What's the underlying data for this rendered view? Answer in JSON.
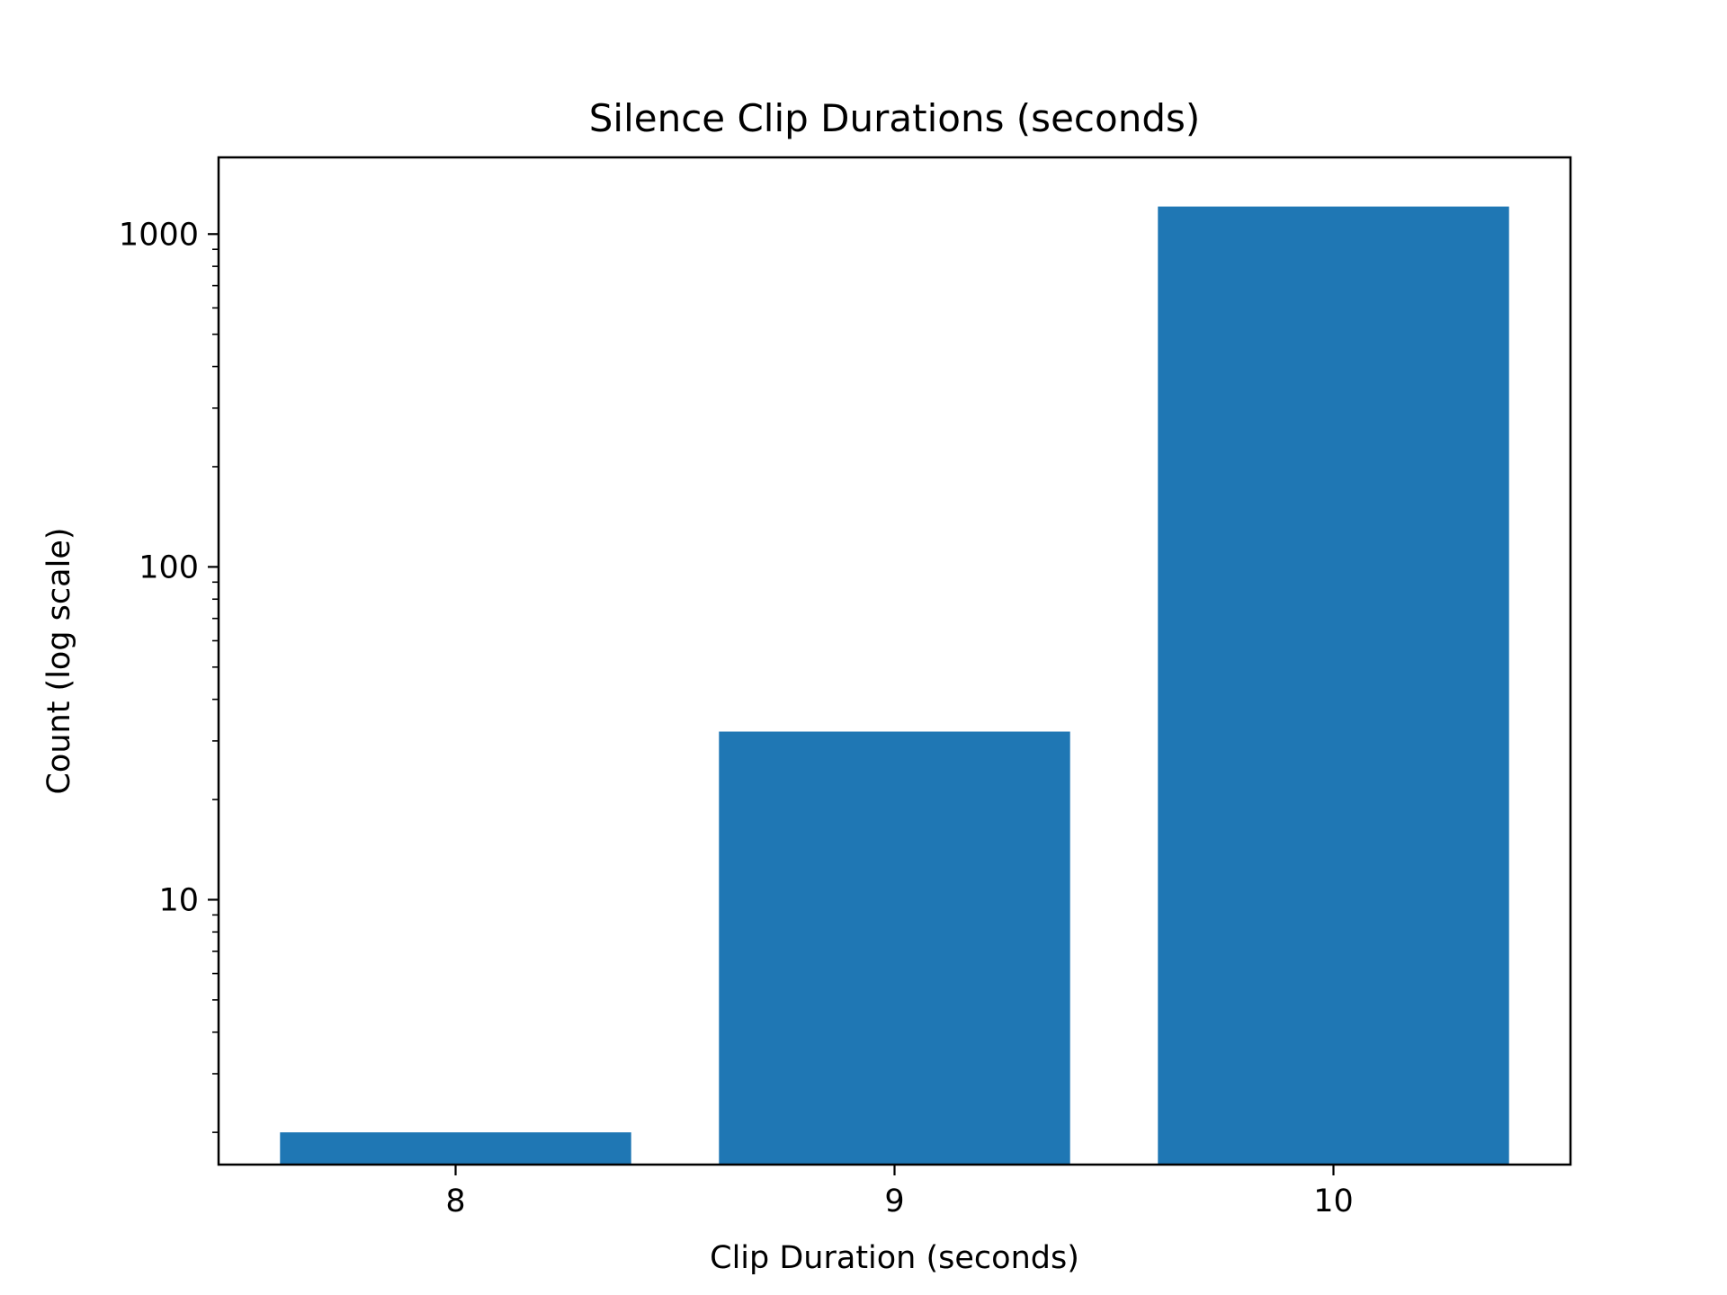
{
  "chart_data": {
    "type": "bar",
    "title": "Silence Clip Durations (seconds)",
    "xlabel": "Clip Duration (seconds)",
    "ylabel": "Count (log scale)",
    "categories": [
      "8",
      "9",
      "10"
    ],
    "values": [
      2,
      32,
      1210
    ],
    "y_scale": "log",
    "ylim": [
      1.6,
      1700
    ],
    "y_ticks": [
      10,
      100,
      1000
    ],
    "y_tick_labels": [
      "10",
      "100",
      "1000"
    ],
    "grid": false,
    "legend": "none",
    "bar_color": "#1f77b4"
  }
}
